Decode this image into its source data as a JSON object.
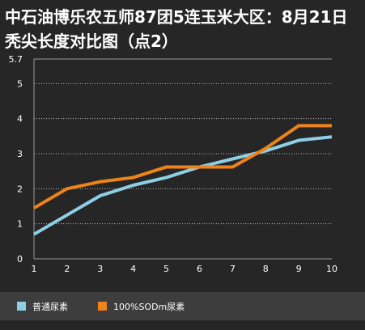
{
  "chart_data": {
    "type": "line",
    "title": "中石油博乐农五师87团5连玉米大区：8月21日秃尖长度对比图（点2）",
    "x": [
      1,
      2,
      3,
      4,
      5,
      6,
      7,
      8,
      9,
      10
    ],
    "ytick_labels": [
      "0",
      "1",
      "2",
      "3",
      "4",
      "5",
      "5.7"
    ],
    "ylim": [
      0,
      5.7
    ],
    "series": [
      {
        "name": "普通尿素",
        "color": "#8ecfe6",
        "values": [
          0.7,
          1.25,
          1.8,
          2.1,
          2.32,
          2.62,
          2.85,
          3.08,
          3.38,
          3.48
        ]
      },
      {
        "name": "100%SODm尿素",
        "color": "#ee8419",
        "values": [
          1.45,
          2.0,
          2.2,
          2.32,
          2.62,
          2.62,
          2.62,
          3.15,
          3.8,
          3.8
        ]
      }
    ],
    "grid": true,
    "legend_position": "bottom"
  }
}
